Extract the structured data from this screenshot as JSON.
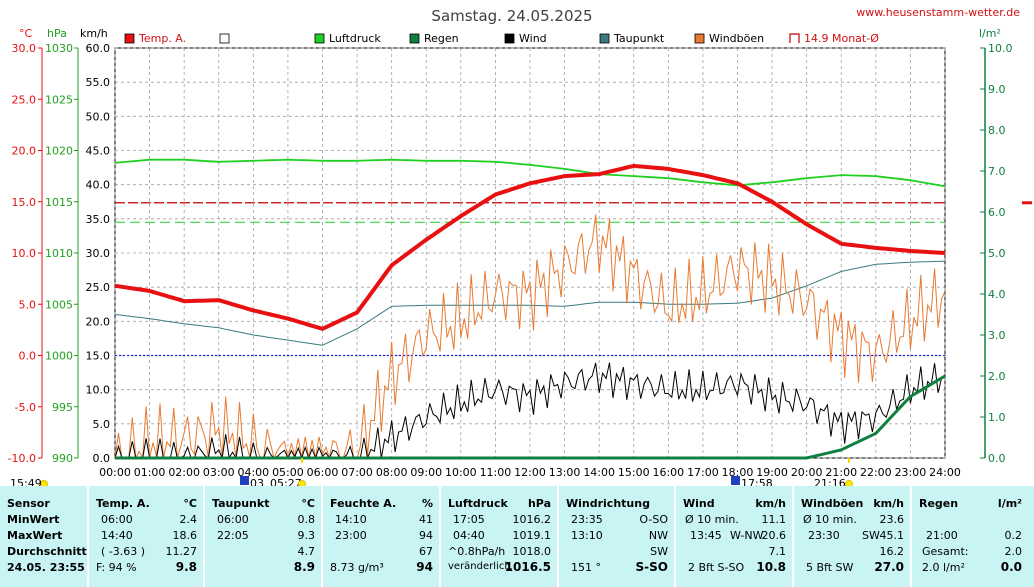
{
  "title": "Samstag. 24.05.2025",
  "site": "www.heusenstamm-wetter.de",
  "units": {
    "temp": "°C",
    "pressure": "hPa",
    "wind": "km/h",
    "rain": "l/m²"
  },
  "axes": {
    "temp_ticks": [
      "30.0",
      "25.0",
      "20.0",
      "15.0",
      "10.0",
      "5.0",
      "0.0",
      "-5.0",
      "-10.0"
    ],
    "pressure_ticks": [
      "1030",
      "1025",
      "1020",
      "1015",
      "1010",
      "1005",
      "1000",
      "995",
      "990"
    ],
    "wind_ticks": [
      "60.0",
      "55.0",
      "50.0",
      "45.0",
      "40.0",
      "35.0",
      "30.0",
      "25.0",
      "20.0",
      "15.0",
      "10.0",
      "5.0",
      "0.0"
    ],
    "rain_ticks": [
      "10.0",
      "9.0",
      "8.0",
      "7.0",
      "6.0",
      "5.0",
      "4.0",
      "3.0",
      "2.0",
      "1.0",
      "0.0"
    ],
    "time_ticks": [
      "00:00",
      "01:00",
      "02:00",
      "03:00",
      "04:00",
      "05:00",
      "06:00",
      "07:00",
      "08:00",
      "09:00",
      "10:00",
      "11:00",
      "12:00",
      "13:00",
      "14:00",
      "15:00",
      "16:00",
      "17:00",
      "18:00",
      "19:00",
      "20:00",
      "21:00",
      "22:00",
      "23:00",
      "24:00"
    ]
  },
  "legend": [
    {
      "label": "Temp. A.",
      "color": "#e81010"
    },
    {
      "label": "",
      "color": "#ffffff"
    },
    {
      "label": "Luftdruck",
      "color": "#20d020"
    },
    {
      "label": "Regen",
      "color": "#108040"
    },
    {
      "label": "Wind",
      "color": "#000000"
    },
    {
      "label": "Taupunkt",
      "color": "#3a7a80"
    },
    {
      "label": "Windböen",
      "color": "#e87a30"
    },
    {
      "label": "14.9 Monat-Ø",
      "color": "#c00000"
    }
  ],
  "markers": {
    "sunrise_left": "15:49",
    "sunrise": "05:27",
    "moon_left": "03",
    "sunset_icon_time": "17:58",
    "sunset": "21:16"
  },
  "chart_data": {
    "type": "line",
    "title": "Samstag. 24.05.2025",
    "x_range": [
      "00:00",
      "24:00"
    ],
    "ylim_temp": [
      -10,
      30
    ],
    "ylim_pressure": [
      990,
      1030
    ],
    "ylim_wind": [
      0,
      60
    ],
    "ylim_rain": [
      0,
      10
    ],
    "monthly_avg_temp": 14.9,
    "x_hours": [
      0,
      1,
      2,
      3,
      4,
      5,
      6,
      7,
      8,
      9,
      10,
      11,
      12,
      13,
      14,
      15,
      16,
      17,
      18,
      19,
      20,
      21,
      22,
      23,
      24
    ],
    "series": [
      {
        "name": "Temp. A.",
        "unit": "°C",
        "values": [
          6.8,
          6.3,
          5.3,
          5.4,
          4.4,
          3.6,
          2.6,
          4.2,
          8.8,
          11.3,
          13.6,
          15.7,
          16.8,
          17.5,
          17.7,
          18.5,
          18.2,
          17.6,
          16.8,
          15.0,
          12.8,
          10.9,
          10.5,
          10.2,
          10.0
        ]
      },
      {
        "name": "Luftdruck",
        "unit": "hPa",
        "values": [
          1018.8,
          1019.1,
          1019.1,
          1018.9,
          1019.0,
          1019.1,
          1019.0,
          1019.0,
          1019.1,
          1019.0,
          1019.0,
          1018.9,
          1018.6,
          1018.2,
          1017.7,
          1017.5,
          1017.3,
          1016.9,
          1016.6,
          1016.9,
          1017.3,
          1017.6,
          1017.5,
          1017.1,
          1016.5
        ]
      },
      {
        "name": "Taupunkt",
        "unit": "°C",
        "values": [
          4.0,
          3.6,
          3.1,
          2.7,
          2.0,
          1.5,
          1.0,
          2.6,
          4.8,
          4.9,
          4.9,
          4.9,
          4.9,
          4.8,
          5.2,
          5.2,
          5.0,
          5.0,
          5.1,
          5.6,
          6.8,
          8.2,
          8.9,
          9.1,
          9.2
        ]
      },
      {
        "name": "Wind",
        "unit": "km/h",
        "values": [
          0,
          0,
          0,
          1,
          0,
          0,
          0,
          0,
          3,
          6,
          8,
          10,
          9,
          11,
          12,
          11,
          10,
          10,
          11,
          9,
          8,
          5,
          6,
          10,
          12
        ]
      },
      {
        "name": "Windböen",
        "unit": "km/h",
        "values": [
          0,
          2,
          3,
          4,
          2,
          0,
          0,
          1,
          12,
          18,
          20,
          24,
          24,
          28,
          32,
          27,
          22,
          24,
          28,
          26,
          23,
          18,
          15,
          20,
          24
        ]
      },
      {
        "name": "Regen",
        "unit": "l/m²",
        "values": [
          0,
          0,
          0,
          0,
          0,
          0,
          0,
          0,
          0,
          0,
          0,
          0,
          0,
          0,
          0,
          0,
          0,
          0,
          0,
          0,
          0,
          0.2,
          0.6,
          1.5,
          2.0
        ]
      }
    ]
  },
  "stats": {
    "date": "24.05. 23:55",
    "row_labels": {
      "title": "Sensor",
      "min": "MinWert",
      "max": "MaxWert",
      "avg": "Durchschnitt"
    },
    "temp": {
      "h1": "Temp. A.",
      "h2": "°C",
      "min_t": "06:00",
      "min_v": "2.4",
      "max_t": "14:40",
      "max_v": "18.6",
      "avg_extra": "( -3.63 )",
      "avg_v": "11.27",
      "cur_l": "F: 94 %",
      "cur_v": "9.8"
    },
    "dew": {
      "h1": "Taupunkt",
      "h2": "°C",
      "min_t": "06:00",
      "min_v": "0.8",
      "max_t": "22:05",
      "max_v": "9.3",
      "avg_v": "4.7",
      "cur_v": "8.9"
    },
    "hum": {
      "h1": "Feuchte A.",
      "h2": "%",
      "min_t": "14:10",
      "min_v": "41",
      "max_t": "23:00",
      "max_v": "94",
      "avg_v": "67",
      "cur_l": "8.73 g/m³",
      "cur_v": "94"
    },
    "press": {
      "h1": "Luftdruck",
      "h2": "hPa",
      "min_t": "17:05",
      "min_v": "1016.2",
      "max_t": "04:40",
      "max_v": "1019.1",
      "avg_l": "^0.8hPa/h",
      "avg_v": "1018.0",
      "cur_l": "veränderlich",
      "cur_arrow": "↓",
      "cur_v": "1016.5"
    },
    "dir": {
      "h1": "Windrichtung",
      "min_t": "23:35",
      "min_v": "O-SO",
      "max_t": "13:10",
      "max_v": "NW",
      "avg_v": "SW",
      "cur_l": "151 °",
      "cur_v": "S-SO"
    },
    "wind": {
      "h1": "Wind",
      "h2": "km/h",
      "min_t": "Ø 10 min.",
      "min_v": "11.1",
      "max_t": "13:45",
      "max_m": "W-NW",
      "max_v": "20.6",
      "avg_v": "7.1",
      "cur_l": "2 Bft S-SO",
      "cur_v": "10.8"
    },
    "gust": {
      "h1": "Windböen",
      "h2": "km/h",
      "min_t": "Ø 10 min.",
      "min_v": "23.6",
      "max_t": "23:30",
      "max_m": "SW",
      "max_v": "45.1",
      "avg_v": "16.2",
      "cur_l": "5 Bft SW",
      "cur_v": "27.0"
    },
    "rain": {
      "h1": "Regen",
      "h2": "l/m²",
      "max_t": "21:00",
      "max_v": "0.2",
      "avg_l": "Gesamt:",
      "avg_v": "2.0",
      "cur_l": "2.0 l/m²",
      "cur_v": "0.0"
    }
  }
}
